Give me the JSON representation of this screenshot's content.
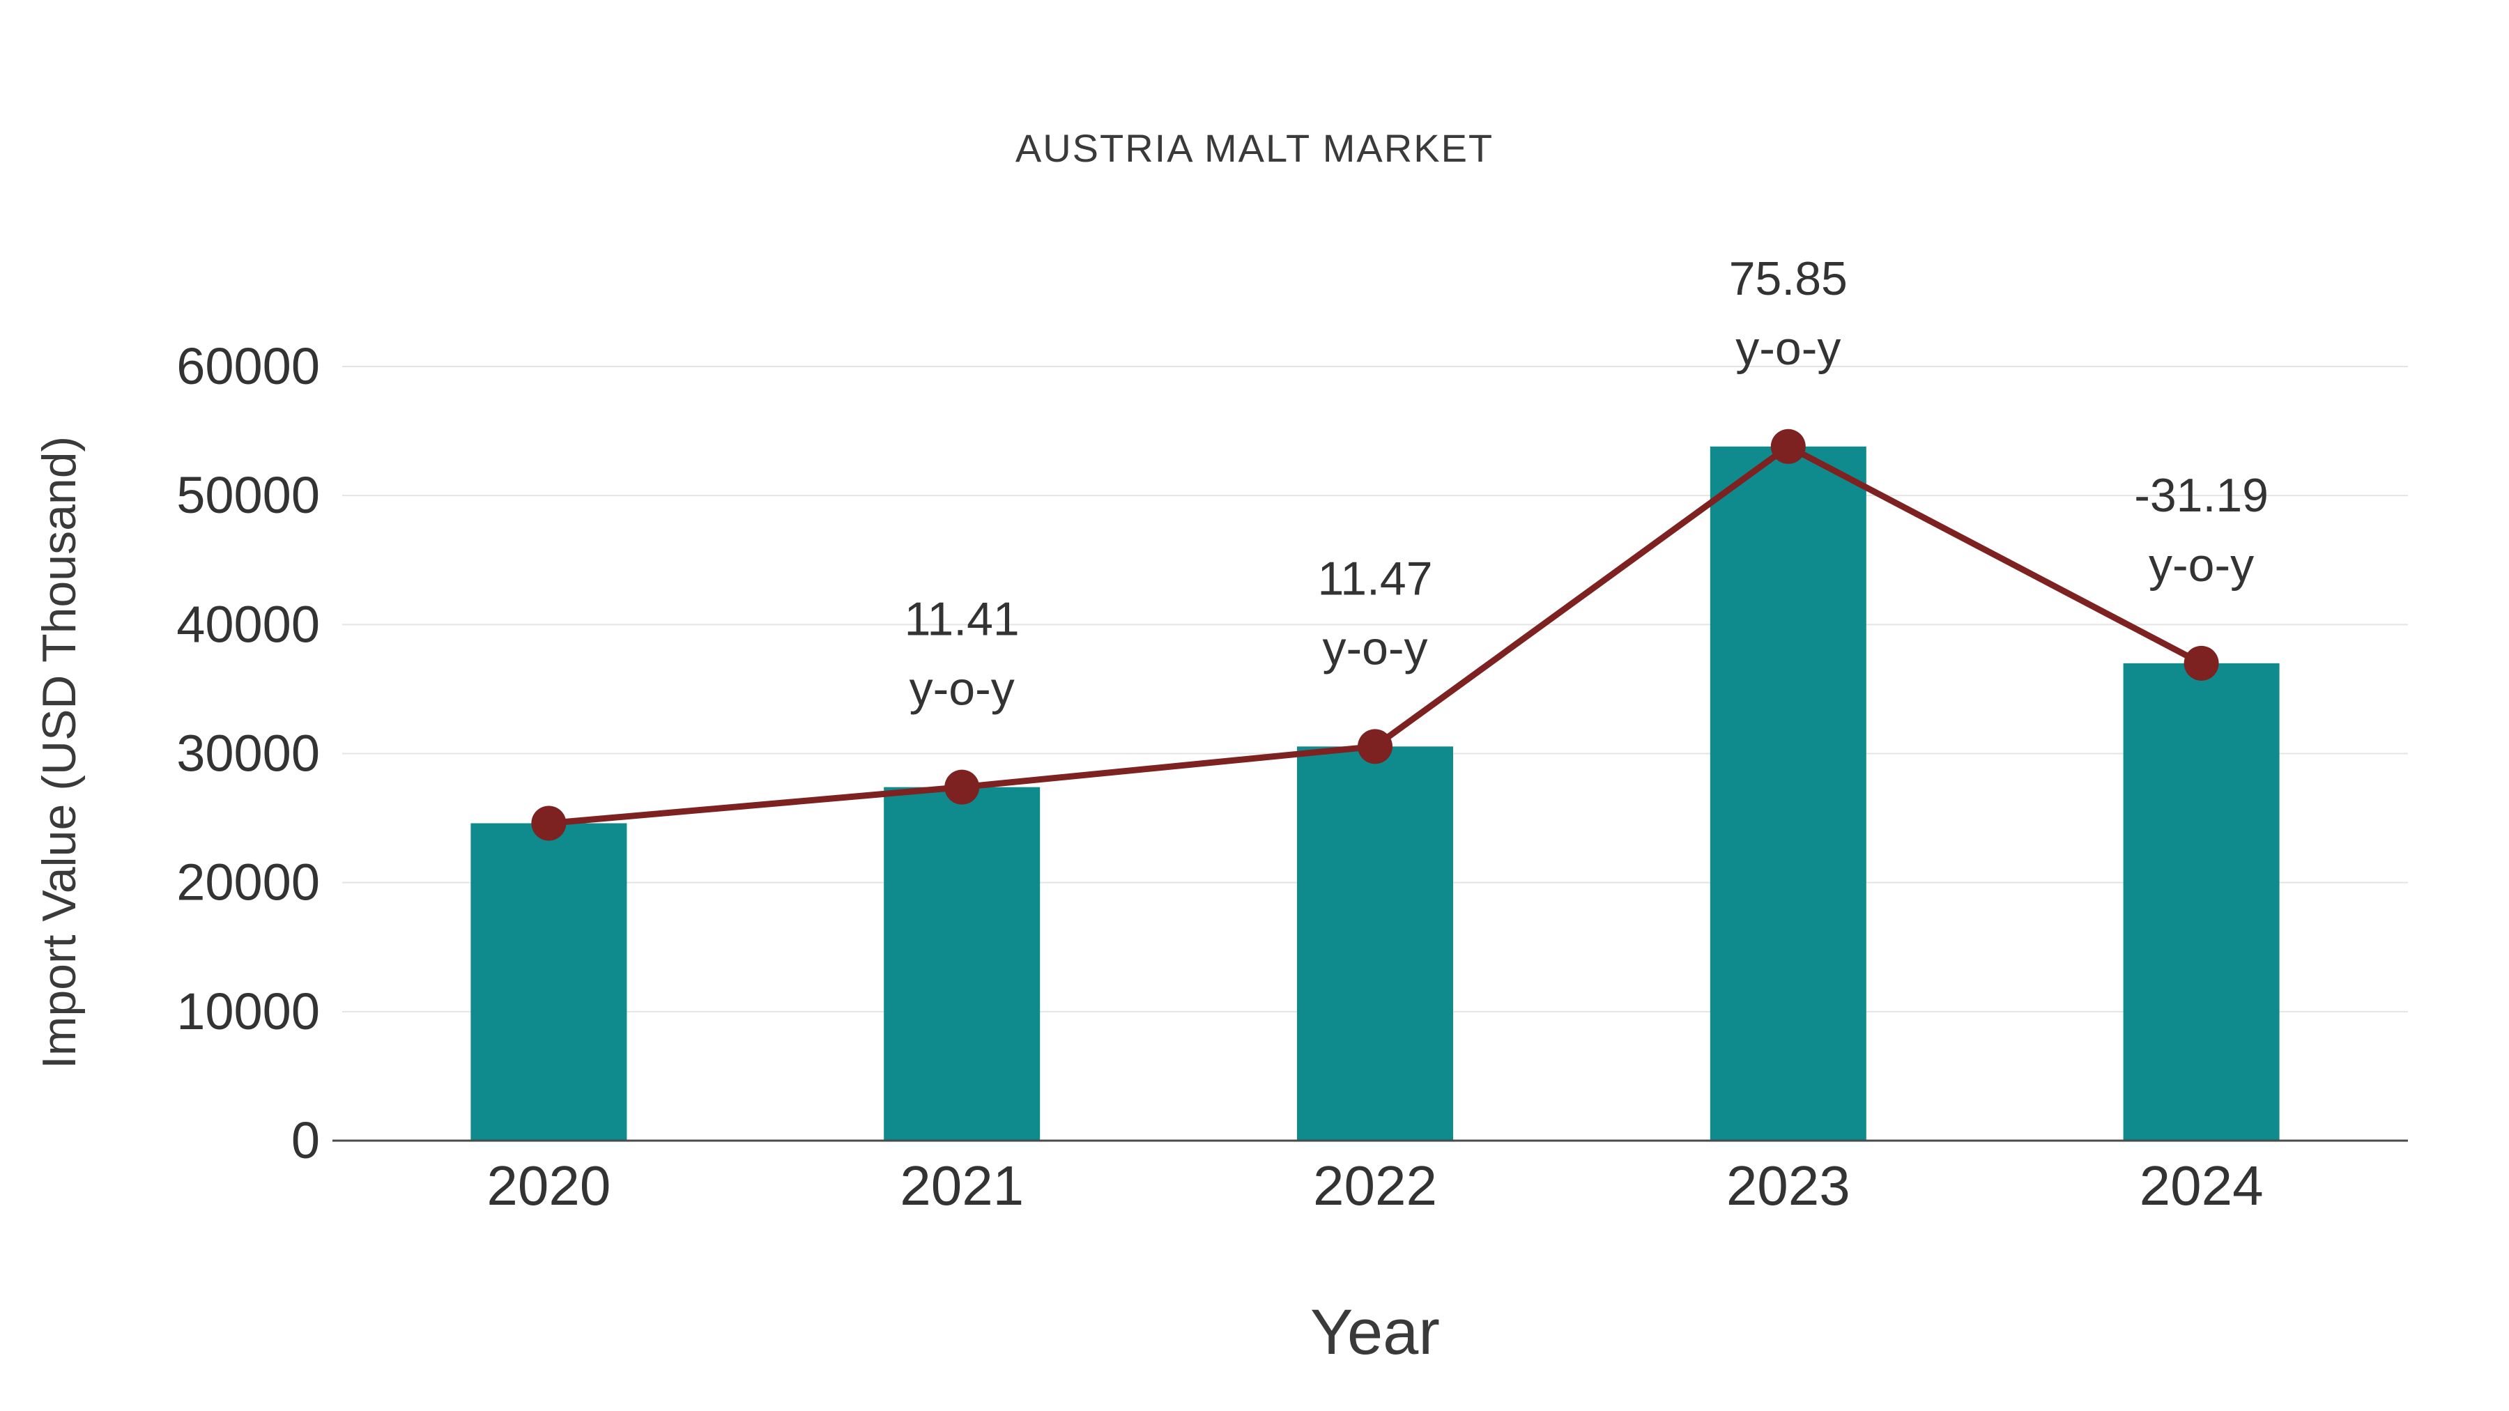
{
  "title": "AUSTRIA MALT MARKET",
  "x_axis_title": "Year",
  "y_axis_title": "Import Value (USD Thousand)",
  "colors": {
    "bar": "#0F8B8D",
    "line": "#7E2121",
    "marker": "#7E2121",
    "grid": "#e4e4e4",
    "axis": "#4a4a4a",
    "text": "#333333"
  },
  "chart_data": {
    "type": "bar",
    "title": "AUSTRIA MALT MARKET",
    "xlabel": "Year",
    "ylabel": "Import Value (USD Thousand)",
    "categories": [
      "2020",
      "2021",
      "2022",
      "2023",
      "2024"
    ],
    "series": [
      {
        "name": "Import Value (USD Thousand)",
        "type": "bar",
        "values": [
          24600,
          27400,
          30550,
          53800,
          37000
        ]
      },
      {
        "name": "y-o-y growth (%)",
        "type": "line",
        "values": [
          null,
          11.41,
          11.47,
          75.85,
          -31.19
        ]
      }
    ],
    "annotations": [
      {
        "category": "2021",
        "lines": [
          "11.41",
          "y-o-y"
        ]
      },
      {
        "category": "2022",
        "lines": [
          "11.47",
          "y-o-y"
        ]
      },
      {
        "category": "2023",
        "lines": [
          "75.85",
          "y-o-y"
        ]
      },
      {
        "category": "2024",
        "lines": [
          "-31.19",
          "y-o-y"
        ]
      }
    ],
    "ylim": [
      0,
      60000
    ],
    "yticks": [
      0,
      10000,
      20000,
      30000,
      40000,
      50000,
      60000
    ],
    "grid": true,
    "legend_position": "none"
  }
}
